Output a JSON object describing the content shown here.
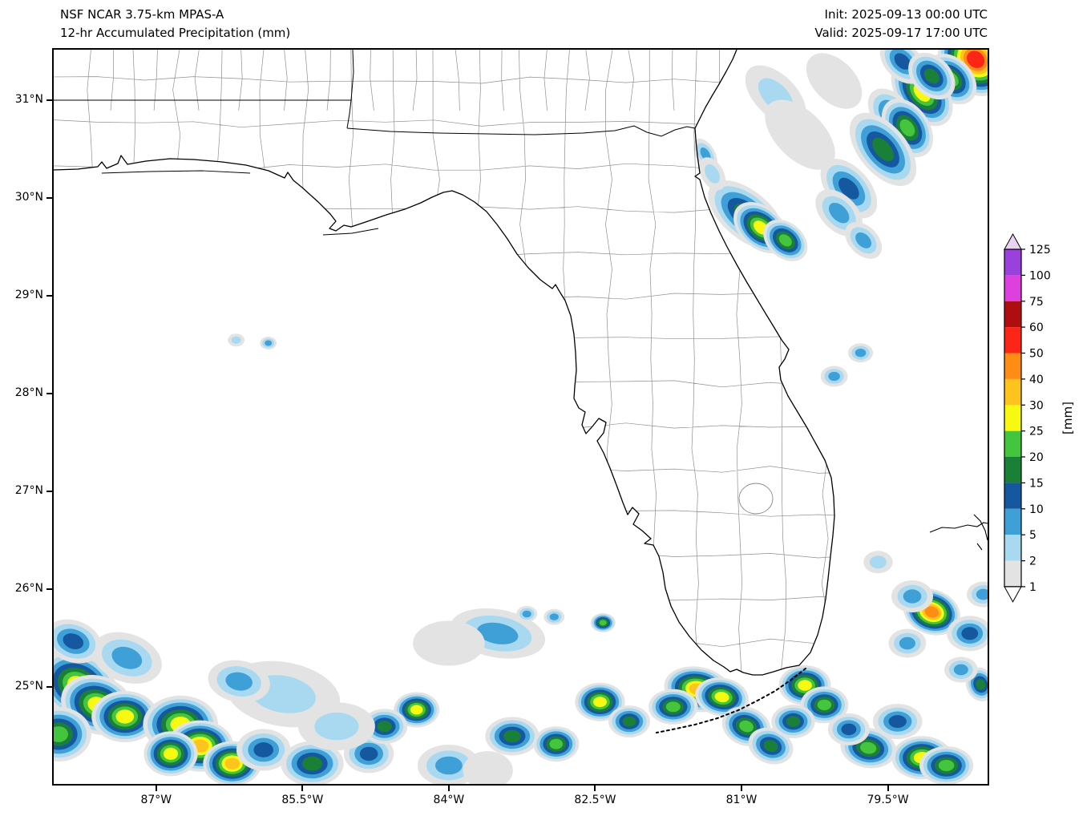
{
  "header": {
    "model_line": "NSF NCAR 3.75-km MPAS-A",
    "product_line": "12-hr Accumulated Precipitation (mm)",
    "init_label": "Init: 2025-09-13 00:00 UTC",
    "valid_label": "Valid: 2025-09-17 17:00 UTC"
  },
  "axes": {
    "lat_ticks": [
      {
        "label": "31°N",
        "lat": 31
      },
      {
        "label": "30°N",
        "lat": 30
      },
      {
        "label": "29°N",
        "lat": 29
      },
      {
        "label": "28°N",
        "lat": 28
      },
      {
        "label": "27°N",
        "lat": 27
      },
      {
        "label": "26°N",
        "lat": 26
      },
      {
        "label": "25°N",
        "lat": 25
      }
    ],
    "lon_ticks": [
      {
        "label": "87°W",
        "lon": -87
      },
      {
        "label": "85.5°W",
        "lon": -85.5
      },
      {
        "label": "84°W",
        "lon": -84
      },
      {
        "label": "82.5°W",
        "lon": -82.5
      },
      {
        "label": "81°W",
        "lon": -81
      },
      {
        "label": "79.5°W",
        "lon": -79.5
      }
    ]
  },
  "colorbar": {
    "unit_label": "[mm]",
    "labels": [
      "125",
      "100",
      "75",
      "60",
      "50",
      "40",
      "30",
      "25",
      "20",
      "15",
      "10",
      "5",
      "2",
      "1"
    ],
    "interval_colors": {
      "1": "#e3e3e3",
      "2": "#a9d9f1",
      "5": "#3fa0d7",
      "10": "#16589f",
      "15": "#1a8038",
      "20": "#45c53e",
      "25": "#f7f913",
      "30": "#ffc31e",
      "40": "#ff8c14",
      "50": "#fb2618",
      "60": "#ae0e10",
      "75": "#dc41dd",
      "100": "#9a41dc"
    },
    "over_color": "#e9d4f4",
    "under_color": "#ffffff"
  },
  "chart_data": {
    "type": "heatmap",
    "title": "12-hr Accumulated Precipitation (mm)",
    "units": "mm",
    "extent": {
      "lon_min": -88.05,
      "lon_max": -78.48,
      "lat_min": 24.0,
      "lat_max": 31.52
    },
    "contour_levels_mm": [
      1,
      2,
      5,
      10,
      15,
      20,
      25,
      30,
      40,
      50,
      60,
      75,
      100,
      125
    ],
    "precip_features": [
      {
        "lon": -78.6,
        "lat": 31.42,
        "max": 50,
        "r": 42,
        "ar": 1.2,
        "rot": 40
      },
      {
        "lon": -78.85,
        "lat": 31.22,
        "max": 20,
        "r": 26,
        "ar": 1.4,
        "rot": 45
      },
      {
        "lon": -79.15,
        "lat": 31.08,
        "max": 25,
        "r": 30,
        "ar": 1.6,
        "rot": 50
      },
      {
        "lon": -79.35,
        "lat": 31.4,
        "max": 10,
        "r": 22,
        "ar": 1.5,
        "rot": 45
      },
      {
        "lon": -79.05,
        "lat": 31.25,
        "max": 15,
        "r": 24,
        "ar": 1.4,
        "rot": 45
      },
      {
        "lon": -79.45,
        "lat": 30.85,
        "max": 10,
        "r": 24,
        "ar": 1.6,
        "rot": 50
      },
      {
        "lon": -79.3,
        "lat": 30.72,
        "max": 20,
        "r": 27,
        "ar": 1.5,
        "rot": 55
      },
      {
        "lon": -79.55,
        "lat": 30.5,
        "max": 15,
        "r": 30,
        "ar": 1.8,
        "rot": 50
      },
      {
        "lon": -79.9,
        "lat": 30.1,
        "max": 10,
        "r": 26,
        "ar": 1.7,
        "rot": 48
      },
      {
        "lon": -80.0,
        "lat": 29.85,
        "max": 5,
        "r": 22,
        "ar": 1.6,
        "rot": 45
      },
      {
        "lon": -80.95,
        "lat": 29.83,
        "max": 15,
        "r": 30,
        "ar": 1.9,
        "rot": 40
      },
      {
        "lon": -80.8,
        "lat": 29.7,
        "max": 25,
        "r": 26,
        "ar": 1.5,
        "rot": 40
      },
      {
        "lon": -80.55,
        "lat": 29.57,
        "max": 20,
        "r": 22,
        "ar": 1.4,
        "rot": 40
      },
      {
        "lon": -79.75,
        "lat": 29.57,
        "max": 5,
        "r": 18,
        "ar": 1.5,
        "rot": 45
      },
      {
        "lon": -79.78,
        "lat": 28.42,
        "max": 5,
        "r": 12
      },
      {
        "lon": -80.05,
        "lat": 28.18,
        "max": 5,
        "r": 13
      },
      {
        "lon": -80.65,
        "lat": 31.05,
        "max": 2,
        "r": 26,
        "ar": 1.8,
        "rot": 45
      },
      {
        "lon": -80.4,
        "lat": 30.65,
        "max": 1,
        "r": 30,
        "ar": 1.8,
        "rot": 45
      },
      {
        "lon": -80.05,
        "lat": 31.2,
        "max": 1,
        "r": 26,
        "ar": 1.6,
        "rot": 45
      },
      {
        "lon": -81.37,
        "lat": 30.45,
        "max": 5,
        "r": 12,
        "ar": 1.8,
        "rot": 60
      },
      {
        "lon": -81.3,
        "lat": 30.25,
        "max": 2,
        "r": 14,
        "ar": 1.6,
        "rot": 60
      },
      {
        "lon": -86.18,
        "lat": 28.55,
        "max": 2,
        "r": 8
      },
      {
        "lon": -85.85,
        "lat": 28.52,
        "max": 5,
        "r": 8
      },
      {
        "lon": -79.05,
        "lat": 25.77,
        "max": 40,
        "r": 28,
        "ar": 1.3,
        "rot": 20
      },
      {
        "lon": -79.25,
        "lat": 25.93,
        "max": 5,
        "r": 20
      },
      {
        "lon": -78.66,
        "lat": 25.55,
        "max": 10,
        "r": 22
      },
      {
        "lon": -78.52,
        "lat": 25.95,
        "max": 5,
        "r": 16
      },
      {
        "lon": -79.3,
        "lat": 25.45,
        "max": 5,
        "r": 18
      },
      {
        "lon": -78.55,
        "lat": 25.03,
        "max": 15,
        "r": 18,
        "ar": 1.2,
        "rot": 70
      },
      {
        "lon": -78.75,
        "lat": 25.18,
        "max": 5,
        "r": 16
      },
      {
        "lon": -79.6,
        "lat": 26.28,
        "max": 2,
        "r": 14
      },
      {
        "lon": -81.45,
        "lat": 24.98,
        "max": 30,
        "r": 28,
        "ar": 1.5,
        "rot": 10
      },
      {
        "lon": -81.2,
        "lat": 24.9,
        "max": 25,
        "r": 24,
        "ar": 1.4,
        "rot": 10
      },
      {
        "lon": -81.7,
        "lat": 24.8,
        "max": 20,
        "r": 22,
        "ar": 1.4
      },
      {
        "lon": -80.95,
        "lat": 24.6,
        "max": 20,
        "r": 24,
        "ar": 1.3,
        "rot": 20
      },
      {
        "lon": -80.7,
        "lat": 24.4,
        "max": 15,
        "r": 22,
        "ar": 1.3,
        "rot": 20
      },
      {
        "lon": -80.35,
        "lat": 25.02,
        "max": 25,
        "r": 25
      },
      {
        "lon": -80.15,
        "lat": 24.82,
        "max": 20,
        "r": 23
      },
      {
        "lon": -79.7,
        "lat": 24.38,
        "max": 20,
        "r": 25,
        "ar": 1.4,
        "rot": 10
      },
      {
        "lon": -79.15,
        "lat": 24.28,
        "max": 25,
        "r": 27,
        "ar": 1.4
      },
      {
        "lon": -78.9,
        "lat": 24.2,
        "max": 20,
        "r": 24,
        "ar": 1.4
      },
      {
        "lon": -79.4,
        "lat": 24.65,
        "max": 10,
        "r": 22,
        "ar": 1.4
      },
      {
        "lon": -79.9,
        "lat": 24.57,
        "max": 10,
        "r": 20
      },
      {
        "lon": -80.47,
        "lat": 24.65,
        "max": 15,
        "r": 21
      },
      {
        "lon": -83.35,
        "lat": 24.5,
        "max": 15,
        "r": 24,
        "ar": 1.4
      },
      {
        "lon": -82.9,
        "lat": 24.42,
        "max": 20,
        "r": 22
      },
      {
        "lon": -82.45,
        "lat": 24.85,
        "max": 25,
        "r": 24
      },
      {
        "lon": -82.15,
        "lat": 24.65,
        "max": 15,
        "r": 20
      },
      {
        "lon": -83.5,
        "lat": 25.55,
        "max": 5,
        "r": 30,
        "ar": 2.0,
        "rot": 10
      },
      {
        "lon": -83.2,
        "lat": 25.75,
        "max": 5,
        "r": 10
      },
      {
        "lon": -82.92,
        "lat": 25.72,
        "max": 5,
        "r": 10
      },
      {
        "lon": -82.42,
        "lat": 25.66,
        "max": 20,
        "r": 12
      },
      {
        "lon": -84.0,
        "lat": 25.45,
        "max": 1,
        "r": 28,
        "ar": 1.6
      },
      {
        "lon": -87.8,
        "lat": 25.02,
        "max": 25,
        "r": 40,
        "ar": 1.3,
        "rot": 30
      },
      {
        "lon": -87.6,
        "lat": 24.82,
        "max": 25,
        "r": 36,
        "ar": 1.3,
        "rot": 20
      },
      {
        "lon": -87.32,
        "lat": 24.7,
        "max": 25,
        "r": 32
      },
      {
        "lon": -88.0,
        "lat": 24.52,
        "max": 20,
        "r": 34,
        "ar": 1.2
      },
      {
        "lon": -86.75,
        "lat": 24.62,
        "max": 25,
        "r": 36
      },
      {
        "lon": -86.55,
        "lat": 24.4,
        "max": 30,
        "r": 32
      },
      {
        "lon": -86.85,
        "lat": 24.32,
        "max": 25,
        "r": 28,
        "ar": 1.2
      },
      {
        "lon": -86.22,
        "lat": 24.22,
        "max": 30,
        "r": 28
      },
      {
        "lon": -85.9,
        "lat": 24.36,
        "max": 10,
        "r": 26
      },
      {
        "lon": -85.4,
        "lat": 24.22,
        "max": 15,
        "r": 28,
        "ar": 1.4
      },
      {
        "lon": -84.82,
        "lat": 24.32,
        "max": 10,
        "r": 24
      },
      {
        "lon": -84.33,
        "lat": 24.77,
        "max": 25,
        "r": 22
      },
      {
        "lon": -84.66,
        "lat": 24.6,
        "max": 15,
        "r": 22
      },
      {
        "lon": -85.7,
        "lat": 24.93,
        "max": 2,
        "r": 40,
        "ar": 1.8,
        "rot": 10
      },
      {
        "lon": -86.15,
        "lat": 25.06,
        "max": 5,
        "r": 26,
        "ar": 1.5,
        "rot": 10
      },
      {
        "lon": -87.3,
        "lat": 25.3,
        "max": 5,
        "r": 30,
        "ar": 1.5,
        "rot": 20
      },
      {
        "lon": -87.85,
        "lat": 25.47,
        "max": 10,
        "r": 26,
        "ar": 1.4,
        "rot": 20
      },
      {
        "lon": -85.15,
        "lat": 24.6,
        "max": 2,
        "r": 30,
        "ar": 1.6
      },
      {
        "lon": -84.0,
        "lat": 24.2,
        "max": 5,
        "r": 26,
        "ar": 1.5
      },
      {
        "lon": -83.6,
        "lat": 24.15,
        "max": 1,
        "r": 24
      }
    ]
  }
}
